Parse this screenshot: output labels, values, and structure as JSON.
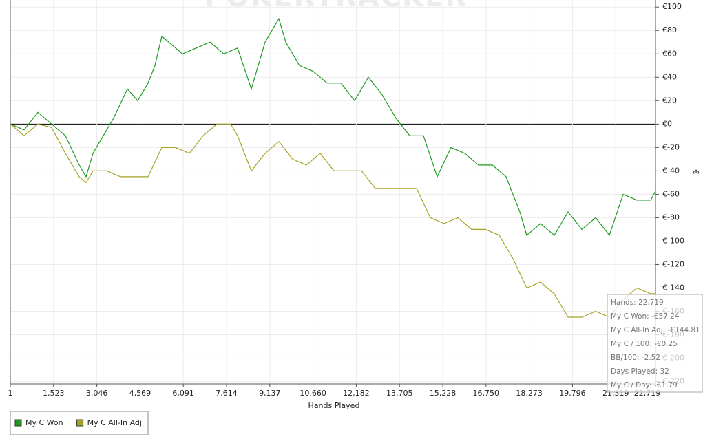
{
  "chart_data": {
    "type": "line",
    "watermark": "POKERTRACKER",
    "x_label": "Hands Played",
    "y_label": "€",
    "xlim": [
      1,
      22719
    ],
    "xticks": [
      1,
      {
        "value": 1523,
        "label": "1,523"
      },
      {
        "value": 3046,
        "label": "3,046"
      },
      {
        "value": 4569,
        "label": "4,569"
      },
      {
        "value": 6091,
        "label": "6,091"
      },
      {
        "value": 7614,
        "label": "7,614"
      },
      {
        "value": 9137,
        "label": "9,137"
      },
      {
        "value": 10660,
        "label": "10,660"
      },
      {
        "value": 12182,
        "label": "12,182"
      },
      {
        "value": 13705,
        "label": "13,705"
      },
      {
        "value": 15228,
        "label": "15,228"
      },
      {
        "value": 16750,
        "label": "16,750"
      },
      {
        "value": 18273,
        "label": "18,273"
      },
      {
        "value": 19796,
        "label": "19,796"
      },
      {
        "value": 21319,
        "label": "21,319"
      },
      {
        "value": 22719,
        "label": "22,719"
      }
    ],
    "ylim": [
      -222,
      106
    ],
    "yticks": [
      {
        "value": 100,
        "label": "€100"
      },
      {
        "value": 80,
        "label": "€80"
      },
      {
        "value": 60,
        "label": "€60"
      },
      {
        "value": 40,
        "label": "€40"
      },
      {
        "value": 20,
        "label": "€20"
      },
      {
        "value": 0,
        "label": "€0"
      },
      {
        "value": -20,
        "label": "€-20"
      },
      {
        "value": -40,
        "label": "€-40"
      },
      {
        "value": -60,
        "label": "€-60"
      },
      {
        "value": -80,
        "label": "€-80"
      },
      {
        "value": -100,
        "label": "€-100"
      },
      {
        "value": -120,
        "label": "€-120"
      },
      {
        "value": -140,
        "label": "€-140"
      },
      {
        "value": -160,
        "label": "€-160"
      },
      {
        "value": -180,
        "label": "€-180"
      },
      {
        "value": -200,
        "label": "€-200"
      },
      {
        "value": -220,
        "label": "€-220"
      }
    ],
    "grid": true,
    "legend": "bottom-left",
    "series": [
      {
        "name": "My C Won",
        "color": "#1f9a1f",
        "x": [
          1,
          486,
          971,
          1456,
          1941,
          2426,
          2668,
          2910,
          3395,
          3638,
          4123,
          4486,
          4850,
          5093,
          5335,
          5820,
          6062,
          6547,
          7032,
          7517,
          8002,
          8487,
          8972,
          9456,
          9699,
          10184,
          10669,
          11154,
          11639,
          12124,
          12608,
          13093,
          13578,
          14063,
          14548,
          15033,
          15518,
          16003,
          16488,
          16973,
          17458,
          17943,
          18185,
          18670,
          19155,
          19640,
          20125,
          20609,
          21094,
          21579,
          22064,
          22549,
          22719
        ],
        "values": [
          0,
          -5,
          10,
          0,
          -10,
          -35,
          -45,
          -25,
          -5,
          5,
          30,
          20,
          35,
          50,
          75,
          65,
          60,
          65,
          70,
          60,
          65,
          30,
          70,
          90,
          70,
          50,
          45,
          35,
          35,
          20,
          40,
          25,
          5,
          -10,
          -10,
          -45,
          -20,
          -25,
          -35,
          -35,
          -45,
          -75,
          -95,
          -85,
          -95,
          -75,
          -90,
          -80,
          -95,
          -60,
          -65,
          -65,
          -57.24
        ]
      },
      {
        "name": "My C All-In Adj",
        "color": "#a8a226",
        "x": [
          1,
          486,
          971,
          1456,
          1941,
          2426,
          2668,
          2910,
          3395,
          3880,
          4365,
          4850,
          5335,
          5820,
          6305,
          6789,
          7274,
          7759,
          8002,
          8487,
          8972,
          9456,
          9942,
          10426,
          10911,
          11396,
          11881,
          12366,
          12851,
          13336,
          13821,
          14306,
          14790,
          15275,
          15760,
          16245,
          16730,
          17215,
          17700,
          18185,
          18670,
          19155,
          19640,
          20125,
          20609,
          21094,
          21579,
          22064,
          22549,
          22719
        ],
        "values": [
          0,
          -10,
          0,
          -3,
          -25,
          -45,
          -50,
          -40,
          -40,
          -45,
          -45,
          -45,
          -20,
          -20,
          -25,
          -10,
          0,
          0,
          -10,
          -40,
          -25,
          -15,
          -30,
          -35,
          -25,
          -40,
          -40,
          -40,
          -55,
          -55,
          -55,
          -55,
          -80,
          -85,
          -80,
          -90,
          -90,
          -95,
          -115,
          -140,
          -135,
          -145,
          -165,
          -165,
          -160,
          -165,
          -150,
          -140,
          -145,
          -144.81
        ]
      }
    ],
    "tooltip": [
      "Hands: 22,719",
      "My C Won: -€57.24",
      "My C All-In Adj: -€144.81",
      "My C / 100: -€0.25",
      "BB/100: -2.52",
      "Days Played: 32",
      "My C / Day: -€1.79"
    ]
  }
}
